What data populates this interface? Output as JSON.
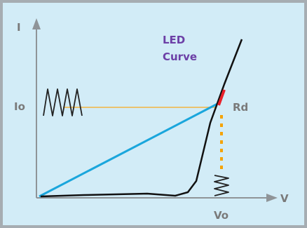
{
  "labels": {
    "y_axis": "I",
    "x_axis": "V",
    "current_marker": "Io",
    "voltage_marker": "Vo",
    "resistance": "Rd",
    "title_line1": "LED",
    "title_line2": "Curve"
  },
  "colors": {
    "background": "#d2ecf7",
    "border": "#a6adb2",
    "axes": "#8f9498",
    "label_text": "#7a7a7a",
    "title_text": "#6c3fa6",
    "led_curve": "#111111",
    "load_line": "#1aa6dc",
    "io_guide": "#f2b441",
    "vo_guide": "#f5a300",
    "rd_segment": "#e8202a",
    "triangle_wave": "#222222"
  },
  "icons": {
    "current_ripple": "triangle-wave-icon",
    "voltage_ripple": "zigzag-wave-icon"
  }
}
